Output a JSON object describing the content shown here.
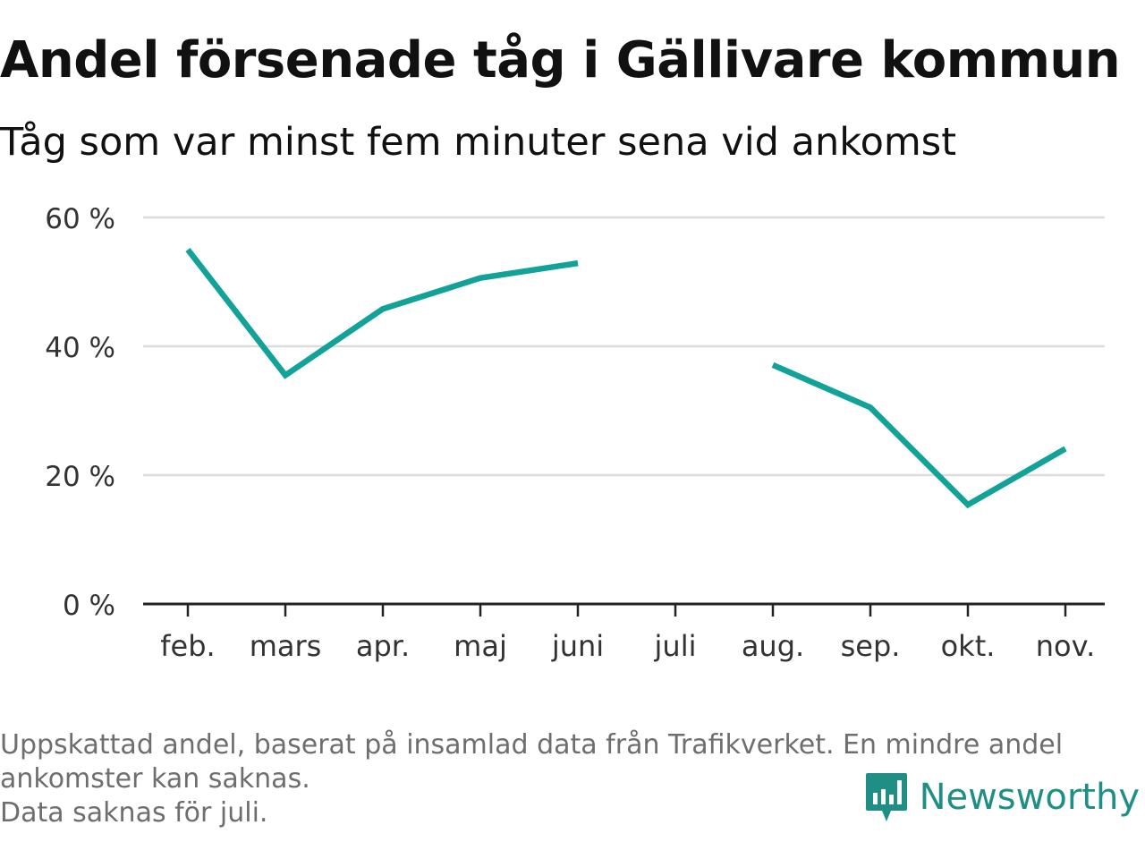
{
  "title": "Andel försenade tåg i Gällivare kommun",
  "subtitle": "Tåg som var minst fem minuter sena vid ankomst",
  "footnotes": [
    "Uppskattad andel, baserat på insamlad data från Trafikverket. En mindre andel",
    "ankomster kan saknas.",
    "Data saknas för juli."
  ],
  "brand": {
    "name": "Newsworthy",
    "icon": "newsworthy-logo-icon",
    "color": "#1f8f86"
  },
  "chart_data": {
    "type": "line",
    "categories": [
      "feb.",
      "mars",
      "apr.",
      "maj",
      "juni",
      "juli",
      "aug.",
      "sep.",
      "okt.",
      "nov."
    ],
    "series": [
      {
        "values": [
          55.0,
          35.5,
          45.8,
          50.6,
          52.9,
          null,
          37.1,
          30.5,
          15.4,
          24.1
        ],
        "color": "#12a298"
      }
    ],
    "ylim": [
      0,
      60
    ],
    "yticks": [
      0,
      20,
      40,
      60
    ],
    "ytick_labels": [
      "0 %",
      "20 %",
      "40 %",
      "60 %"
    ],
    "xlabel": "",
    "ylabel": "",
    "grid": true,
    "gridColor": "#dcdcdc",
    "axisColor": "#222222"
  }
}
